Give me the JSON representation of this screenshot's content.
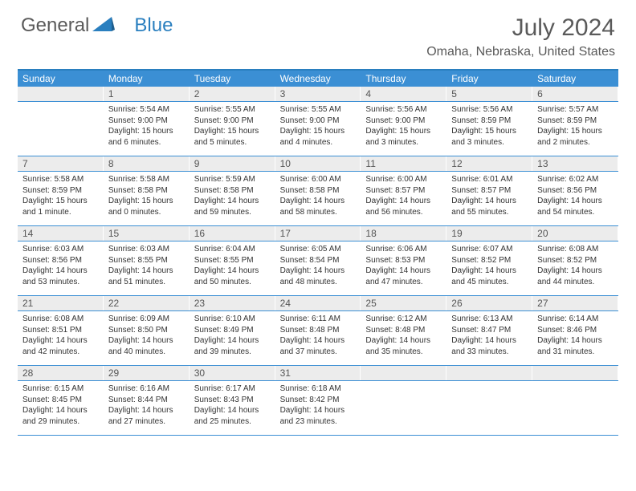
{
  "brand": {
    "part1": "General",
    "part2": "Blue"
  },
  "title": "July 2024",
  "location": "Omaha, Nebraska, United States",
  "colors": {
    "header_bg": "#3b8fd4",
    "header_text": "#ffffff",
    "accent_border": "#2a7fbf",
    "date_bg": "#ececec",
    "body_text": "#333333",
    "title_text": "#5a5a5a"
  },
  "day_names": [
    "Sunday",
    "Monday",
    "Tuesday",
    "Wednesday",
    "Thursday",
    "Friday",
    "Saturday"
  ],
  "weeks": [
    {
      "dates": [
        "",
        "1",
        "2",
        "3",
        "4",
        "5",
        "6"
      ],
      "cells": [
        {
          "sunrise": "",
          "sunset": "",
          "daylight1": "",
          "daylight2": ""
        },
        {
          "sunrise": "Sunrise: 5:54 AM",
          "sunset": "Sunset: 9:00 PM",
          "daylight1": "Daylight: 15 hours",
          "daylight2": "and 6 minutes."
        },
        {
          "sunrise": "Sunrise: 5:55 AM",
          "sunset": "Sunset: 9:00 PM",
          "daylight1": "Daylight: 15 hours",
          "daylight2": "and 5 minutes."
        },
        {
          "sunrise": "Sunrise: 5:55 AM",
          "sunset": "Sunset: 9:00 PM",
          "daylight1": "Daylight: 15 hours",
          "daylight2": "and 4 minutes."
        },
        {
          "sunrise": "Sunrise: 5:56 AM",
          "sunset": "Sunset: 9:00 PM",
          "daylight1": "Daylight: 15 hours",
          "daylight2": "and 3 minutes."
        },
        {
          "sunrise": "Sunrise: 5:56 AM",
          "sunset": "Sunset: 8:59 PM",
          "daylight1": "Daylight: 15 hours",
          "daylight2": "and 3 minutes."
        },
        {
          "sunrise": "Sunrise: 5:57 AM",
          "sunset": "Sunset: 8:59 PM",
          "daylight1": "Daylight: 15 hours",
          "daylight2": "and 2 minutes."
        }
      ]
    },
    {
      "dates": [
        "7",
        "8",
        "9",
        "10",
        "11",
        "12",
        "13"
      ],
      "cells": [
        {
          "sunrise": "Sunrise: 5:58 AM",
          "sunset": "Sunset: 8:59 PM",
          "daylight1": "Daylight: 15 hours",
          "daylight2": "and 1 minute."
        },
        {
          "sunrise": "Sunrise: 5:58 AM",
          "sunset": "Sunset: 8:58 PM",
          "daylight1": "Daylight: 15 hours",
          "daylight2": "and 0 minutes."
        },
        {
          "sunrise": "Sunrise: 5:59 AM",
          "sunset": "Sunset: 8:58 PM",
          "daylight1": "Daylight: 14 hours",
          "daylight2": "and 59 minutes."
        },
        {
          "sunrise": "Sunrise: 6:00 AM",
          "sunset": "Sunset: 8:58 PM",
          "daylight1": "Daylight: 14 hours",
          "daylight2": "and 58 minutes."
        },
        {
          "sunrise": "Sunrise: 6:00 AM",
          "sunset": "Sunset: 8:57 PM",
          "daylight1": "Daylight: 14 hours",
          "daylight2": "and 56 minutes."
        },
        {
          "sunrise": "Sunrise: 6:01 AM",
          "sunset": "Sunset: 8:57 PM",
          "daylight1": "Daylight: 14 hours",
          "daylight2": "and 55 minutes."
        },
        {
          "sunrise": "Sunrise: 6:02 AM",
          "sunset": "Sunset: 8:56 PM",
          "daylight1": "Daylight: 14 hours",
          "daylight2": "and 54 minutes."
        }
      ]
    },
    {
      "dates": [
        "14",
        "15",
        "16",
        "17",
        "18",
        "19",
        "20"
      ],
      "cells": [
        {
          "sunrise": "Sunrise: 6:03 AM",
          "sunset": "Sunset: 8:56 PM",
          "daylight1": "Daylight: 14 hours",
          "daylight2": "and 53 minutes."
        },
        {
          "sunrise": "Sunrise: 6:03 AM",
          "sunset": "Sunset: 8:55 PM",
          "daylight1": "Daylight: 14 hours",
          "daylight2": "and 51 minutes."
        },
        {
          "sunrise": "Sunrise: 6:04 AM",
          "sunset": "Sunset: 8:55 PM",
          "daylight1": "Daylight: 14 hours",
          "daylight2": "and 50 minutes."
        },
        {
          "sunrise": "Sunrise: 6:05 AM",
          "sunset": "Sunset: 8:54 PM",
          "daylight1": "Daylight: 14 hours",
          "daylight2": "and 48 minutes."
        },
        {
          "sunrise": "Sunrise: 6:06 AM",
          "sunset": "Sunset: 8:53 PM",
          "daylight1": "Daylight: 14 hours",
          "daylight2": "and 47 minutes."
        },
        {
          "sunrise": "Sunrise: 6:07 AM",
          "sunset": "Sunset: 8:52 PM",
          "daylight1": "Daylight: 14 hours",
          "daylight2": "and 45 minutes."
        },
        {
          "sunrise": "Sunrise: 6:08 AM",
          "sunset": "Sunset: 8:52 PM",
          "daylight1": "Daylight: 14 hours",
          "daylight2": "and 44 minutes."
        }
      ]
    },
    {
      "dates": [
        "21",
        "22",
        "23",
        "24",
        "25",
        "26",
        "27"
      ],
      "cells": [
        {
          "sunrise": "Sunrise: 6:08 AM",
          "sunset": "Sunset: 8:51 PM",
          "daylight1": "Daylight: 14 hours",
          "daylight2": "and 42 minutes."
        },
        {
          "sunrise": "Sunrise: 6:09 AM",
          "sunset": "Sunset: 8:50 PM",
          "daylight1": "Daylight: 14 hours",
          "daylight2": "and 40 minutes."
        },
        {
          "sunrise": "Sunrise: 6:10 AM",
          "sunset": "Sunset: 8:49 PM",
          "daylight1": "Daylight: 14 hours",
          "daylight2": "and 39 minutes."
        },
        {
          "sunrise": "Sunrise: 6:11 AM",
          "sunset": "Sunset: 8:48 PM",
          "daylight1": "Daylight: 14 hours",
          "daylight2": "and 37 minutes."
        },
        {
          "sunrise": "Sunrise: 6:12 AM",
          "sunset": "Sunset: 8:48 PM",
          "daylight1": "Daylight: 14 hours",
          "daylight2": "and 35 minutes."
        },
        {
          "sunrise": "Sunrise: 6:13 AM",
          "sunset": "Sunset: 8:47 PM",
          "daylight1": "Daylight: 14 hours",
          "daylight2": "and 33 minutes."
        },
        {
          "sunrise": "Sunrise: 6:14 AM",
          "sunset": "Sunset: 8:46 PM",
          "daylight1": "Daylight: 14 hours",
          "daylight2": "and 31 minutes."
        }
      ]
    },
    {
      "dates": [
        "28",
        "29",
        "30",
        "31",
        "",
        "",
        ""
      ],
      "cells": [
        {
          "sunrise": "Sunrise: 6:15 AM",
          "sunset": "Sunset: 8:45 PM",
          "daylight1": "Daylight: 14 hours",
          "daylight2": "and 29 minutes."
        },
        {
          "sunrise": "Sunrise: 6:16 AM",
          "sunset": "Sunset: 8:44 PM",
          "daylight1": "Daylight: 14 hours",
          "daylight2": "and 27 minutes."
        },
        {
          "sunrise": "Sunrise: 6:17 AM",
          "sunset": "Sunset: 8:43 PM",
          "daylight1": "Daylight: 14 hours",
          "daylight2": "and 25 minutes."
        },
        {
          "sunrise": "Sunrise: 6:18 AM",
          "sunset": "Sunset: 8:42 PM",
          "daylight1": "Daylight: 14 hours",
          "daylight2": "and 23 minutes."
        },
        {
          "sunrise": "",
          "sunset": "",
          "daylight1": "",
          "daylight2": ""
        },
        {
          "sunrise": "",
          "sunset": "",
          "daylight1": "",
          "daylight2": ""
        },
        {
          "sunrise": "",
          "sunset": "",
          "daylight1": "",
          "daylight2": ""
        }
      ]
    }
  ]
}
